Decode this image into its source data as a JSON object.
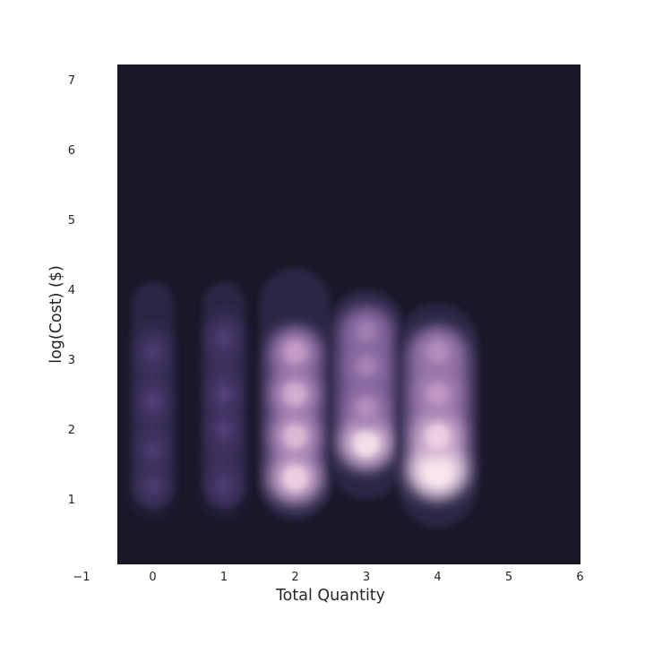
{
  "chart_data": {
    "type": "kde-density",
    "title": "",
    "xlabel": "Total Quantity",
    "ylabel": "log(Cost) ($)",
    "xlim": [
      -1,
      6
    ],
    "ylim": [
      0,
      7.2
    ],
    "x_ticks": [
      -1,
      0,
      1,
      2,
      3,
      4,
      5,
      6
    ],
    "y_ticks": [
      1,
      2,
      3,
      4,
      5,
      6,
      7
    ],
    "grid": false,
    "legend": "none",
    "colors": {
      "background": "#1a1829",
      "low": "#2c2845",
      "mid": "#5a4685",
      "high": "#c69cc6",
      "peak": "#fbe9ee"
    },
    "columns": [
      {
        "x": 0,
        "y_range": [
          0.9,
          4.1
        ],
        "peaks": [
          {
            "y": 1.2,
            "density": 0.15
          },
          {
            "y": 1.7,
            "density": 0.16
          },
          {
            "y": 2.4,
            "density": 0.18
          },
          {
            "y": 3.1,
            "density": 0.16
          }
        ]
      },
      {
        "x": 1,
        "y_range": [
          0.9,
          4.1
        ],
        "peaks": [
          {
            "y": 1.2,
            "density": 0.16
          },
          {
            "y": 2.0,
            "density": 0.18
          },
          {
            "y": 2.5,
            "density": 0.19
          },
          {
            "y": 3.3,
            "density": 0.17
          }
        ]
      },
      {
        "x": 2,
        "y_range": [
          0.7,
          4.3
        ],
        "peaks": [
          {
            "y": 1.3,
            "density": 0.8
          },
          {
            "y": 1.9,
            "density": 0.72
          },
          {
            "y": 2.5,
            "density": 0.68
          },
          {
            "y": 3.1,
            "density": 0.62
          }
        ]
      },
      {
        "x": 3,
        "y_range": [
          1.0,
          4.0
        ],
        "peaks": [
          {
            "y": 1.8,
            "density": 0.85
          },
          {
            "y": 2.3,
            "density": 0.55
          },
          {
            "y": 2.9,
            "density": 0.5
          },
          {
            "y": 3.4,
            "density": 0.48
          }
        ]
      },
      {
        "x": 4,
        "y_range": [
          0.6,
          3.8
        ],
        "peaks": [
          {
            "y": 1.4,
            "density": 1.0
          },
          {
            "y": 1.9,
            "density": 0.8
          },
          {
            "y": 2.5,
            "density": 0.6
          },
          {
            "y": 3.1,
            "density": 0.55
          }
        ]
      }
    ]
  }
}
